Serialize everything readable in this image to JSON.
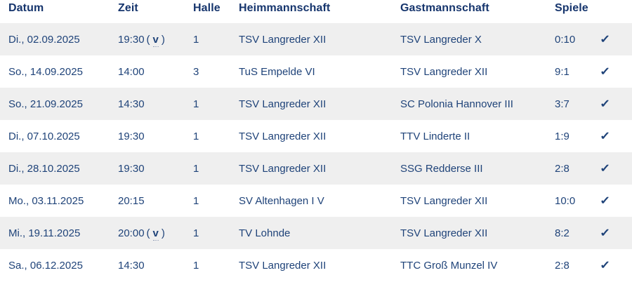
{
  "colors": {
    "header_text": "#16356d",
    "body_text": "#1f4379",
    "row_alt_bg": "#efefef",
    "check": "#1f4379",
    "background": "#ffffff"
  },
  "labels": {
    "verlegt_open": "(",
    "verlegt_abbr": "v",
    "verlegt_close": ")"
  },
  "icons": {
    "check_glyph": "✓"
  },
  "table": {
    "columns": [
      {
        "key": "datum",
        "label": "Datum"
      },
      {
        "key": "zeit",
        "label": "Zeit"
      },
      {
        "key": "halle",
        "label": "Halle"
      },
      {
        "key": "heim",
        "label": "Heimmannschaft"
      },
      {
        "key": "gast",
        "label": "Gastmannschaft"
      },
      {
        "key": "spiele",
        "label": "Spiele"
      },
      {
        "key": "status",
        "label": ""
      }
    ],
    "rows": [
      {
        "datum": "Di., 02.09.2025",
        "zeit": "19:30",
        "verlegt": true,
        "halle": "1",
        "heim": "TSV Langreder XII",
        "gast": "TSV Langreder X",
        "spiele": "0:10",
        "played": true
      },
      {
        "datum": "So., 14.09.2025",
        "zeit": "14:00",
        "verlegt": false,
        "halle": "3",
        "heim": "TuS Empelde VI",
        "gast": "TSV Langreder XII",
        "spiele": "9:1",
        "played": true
      },
      {
        "datum": "So., 21.09.2025",
        "zeit": "14:30",
        "verlegt": false,
        "halle": "1",
        "heim": "TSV Langreder XII",
        "gast": "SC Polonia Hannover III",
        "spiele": "3:7",
        "played": true
      },
      {
        "datum": "Di., 07.10.2025",
        "zeit": "19:30",
        "verlegt": false,
        "halle": "1",
        "heim": "TSV Langreder XII",
        "gast": "TTV Linderte II",
        "spiele": "1:9",
        "played": true
      },
      {
        "datum": "Di., 28.10.2025",
        "zeit": "19:30",
        "verlegt": false,
        "halle": "1",
        "heim": "TSV Langreder XII",
        "gast": "SSG Redderse III",
        "spiele": "2:8",
        "played": true
      },
      {
        "datum": "Mo., 03.11.2025",
        "zeit": "20:15",
        "verlegt": false,
        "halle": "1",
        "heim": "SV Altenhagen I V",
        "gast": "TSV Langreder XII",
        "spiele": "10:0",
        "played": true
      },
      {
        "datum": "Mi., 19.11.2025",
        "zeit": "20:00",
        "verlegt": true,
        "halle": "1",
        "heim": "TV Lohnde",
        "gast": "TSV Langreder XII",
        "spiele": "8:2",
        "played": true
      },
      {
        "datum": "Sa., 06.12.2025",
        "zeit": "14:30",
        "verlegt": false,
        "halle": "1",
        "heim": "TSV Langreder XII",
        "gast": "TTC Groß Munzel IV",
        "spiele": "2:8",
        "played": true
      }
    ]
  }
}
